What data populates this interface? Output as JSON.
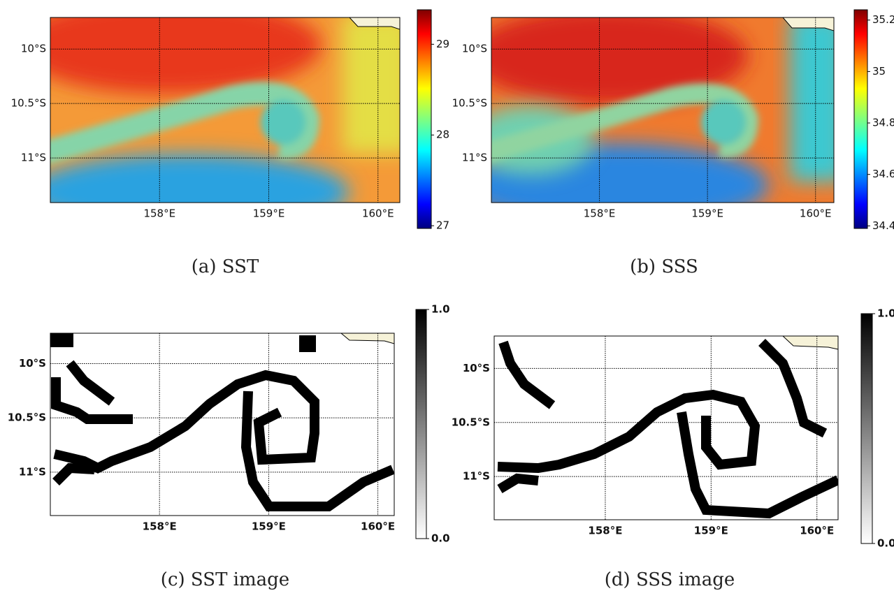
{
  "panels": [
    {
      "caption": "(a) SST",
      "map": {
        "xlim": [
          157.0,
          160.2
        ],
        "ylim": [
          -11.41,
          -9.71
        ],
        "xticks": [
          {
            "value": 158,
            "label": "158°E"
          },
          {
            "value": 159,
            "label": "159°E"
          },
          {
            "value": 160,
            "label": "160°E"
          }
        ],
        "yticks": [
          {
            "value": -10,
            "label": "10°S"
          },
          {
            "value": -10.5,
            "label": "10.5°S"
          },
          {
            "value": -11,
            "label": "11°S"
          }
        ]
      },
      "colorbar": {
        "colormap": "jet",
        "lim": [
          26.97,
          29.38
        ],
        "ticks": [
          27,
          28,
          29
        ]
      }
    },
    {
      "caption": "(b) SSS",
      "map": {
        "xlim": [
          157.0,
          160.17
        ],
        "ylim": [
          -11.41,
          -9.71
        ],
        "xticks": [
          {
            "value": 158,
            "label": "158°E"
          },
          {
            "value": 159,
            "label": "159°E"
          },
          {
            "value": 160,
            "label": "160°E"
          }
        ],
        "yticks": [
          {
            "value": -10,
            "label": "10°S"
          },
          {
            "value": -10.5,
            "label": "10.5°S"
          },
          {
            "value": -11,
            "label": "11°S"
          }
        ]
      },
      "colorbar": {
        "colormap": "jet",
        "lim": [
          34.39,
          35.24
        ],
        "ticks": [
          34.4,
          34.6,
          34.8,
          35.0,
          35.2
        ]
      }
    },
    {
      "caption": "(c) SST image",
      "map": {
        "xlim": [
          157.0,
          160.15
        ],
        "ylim": [
          -11.4,
          -9.72
        ],
        "xticks": [
          {
            "value": 158,
            "label": "158°E"
          },
          {
            "value": 159,
            "label": "159°E"
          },
          {
            "value": 160,
            "label": "160°E"
          }
        ],
        "yticks": [
          {
            "value": -10,
            "label": "10°S"
          },
          {
            "value": -10.5,
            "label": "10.5°S"
          },
          {
            "value": -11,
            "label": "11°S"
          }
        ]
      },
      "colorbar": {
        "colormap": "gray",
        "lim": [
          0,
          1
        ],
        "ticks": [
          {
            "value": 0,
            "label": "0.0"
          },
          {
            "value": 1,
            "label": "1.0"
          }
        ]
      }
    },
    {
      "caption": "(d) SSS image",
      "map": {
        "xlim": [
          156.95,
          160.2
        ],
        "ylim": [
          -11.4,
          -9.7
        ],
        "xticks": [
          {
            "value": 158,
            "label": "158°E"
          },
          {
            "value": 159,
            "label": "159°E"
          },
          {
            "value": 160,
            "label": "160°E"
          }
        ],
        "yticks": [
          {
            "value": -10,
            "label": "10°S"
          },
          {
            "value": -10.5,
            "label": "10.5°S"
          },
          {
            "value": -11,
            "label": "11°S"
          }
        ]
      },
      "colorbar": {
        "colormap": "gray",
        "lim": [
          0,
          1
        ],
        "ticks": [
          {
            "value": 0,
            "label": "0.0"
          },
          {
            "value": 1,
            "label": "1.0"
          }
        ]
      }
    }
  ]
}
